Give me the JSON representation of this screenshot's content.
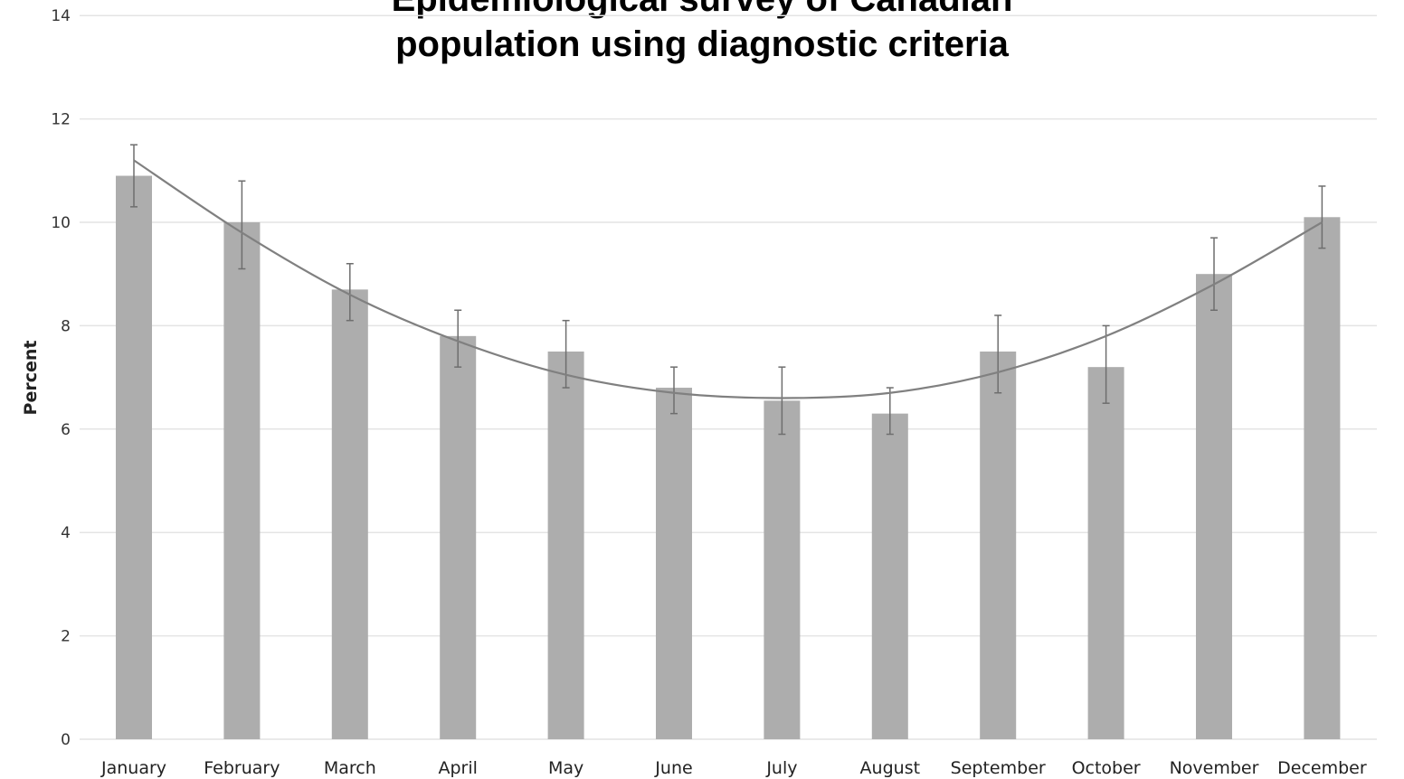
{
  "chart_data": {
    "type": "bar",
    "title": "Epidemiological survey of Canadian population using diagnostic criteria",
    "title_lines": [
      "Epidemiological survey of Canadian",
      "population using diagnostic criteria"
    ],
    "xlabel": "",
    "ylabel": "Percent",
    "ylim": [
      0,
      14
    ],
    "yticks": [
      0,
      2,
      4,
      6,
      8,
      10,
      12,
      14
    ],
    "grid": true,
    "categories": [
      "January",
      "February",
      "March",
      "April",
      "May",
      "June",
      "July",
      "August",
      "September",
      "October",
      "November",
      "December"
    ],
    "values": [
      10.9,
      10.0,
      8.7,
      7.8,
      7.5,
      6.8,
      6.55,
      6.3,
      7.5,
      7.2,
      9.0,
      10.1
    ],
    "error_low": [
      10.3,
      9.1,
      8.1,
      7.2,
      6.8,
      6.3,
      5.9,
      5.9,
      6.7,
      6.5,
      8.3,
      9.5
    ],
    "error_high": [
      11.5,
      10.8,
      9.2,
      8.3,
      8.1,
      7.2,
      7.2,
      6.8,
      8.2,
      8.0,
      9.7,
      10.7
    ],
    "trend": [
      11.2,
      9.8,
      8.6,
      7.7,
      7.05,
      6.7,
      6.6,
      6.7,
      7.1,
      7.8,
      8.8,
      10.0
    ],
    "colors": {
      "bar": "#adadad",
      "grid": "#e4e4e4",
      "trend": "#808080",
      "error": "#6e6e6e"
    }
  }
}
